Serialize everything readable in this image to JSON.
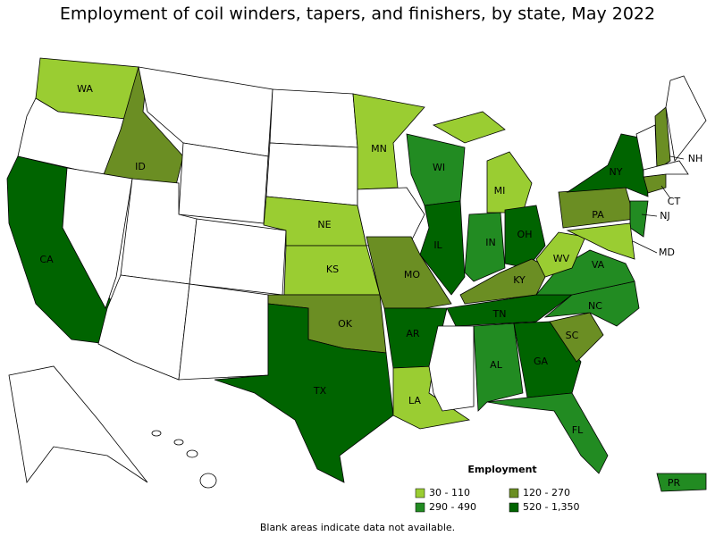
{
  "title": "Employment of coil winders, tapers, and finishers, by state, May 2022",
  "legend": {
    "title": "Employment",
    "entries": [
      {
        "label": "30 - 110",
        "color": "#9acd32"
      },
      {
        "label": "120 - 270",
        "color": "#6b8e23"
      },
      {
        "label": "290 - 490",
        "color": "#228b22"
      },
      {
        "label": "520 - 1,350",
        "color": "#006400"
      }
    ]
  },
  "states": [
    {
      "label": "WA",
      "color": "#9acd32"
    },
    {
      "label": "ID",
      "color": "#6b8e23"
    },
    {
      "label": "CA",
      "color": "#006400"
    },
    {
      "label": "MN",
      "color": "#9acd32"
    },
    {
      "label": "WI",
      "color": "#228b22"
    },
    {
      "label": "MI",
      "color": "#9acd32"
    },
    {
      "label": "NE",
      "color": "#9acd32"
    },
    {
      "label": "KS",
      "color": "#9acd32"
    },
    {
      "label": "IL",
      "color": "#006400"
    },
    {
      "label": "IN",
      "color": "#228b22"
    },
    {
      "label": "OH",
      "color": "#006400"
    },
    {
      "label": "PA",
      "color": "#6b8e23"
    },
    {
      "label": "NY",
      "color": "#006400"
    },
    {
      "label": "NH",
      "color": "#6b8e23"
    },
    {
      "label": "CT",
      "color": "#6b8e23"
    },
    {
      "label": "NJ",
      "color": "#228b22"
    },
    {
      "label": "MD",
      "color": "#9acd32"
    },
    {
      "label": "WV",
      "color": "#9acd32"
    },
    {
      "label": "VA",
      "color": "#228b22"
    },
    {
      "label": "KY",
      "color": "#6b8e23"
    },
    {
      "label": "MO",
      "color": "#6b8e23"
    },
    {
      "label": "OK",
      "color": "#6b8e23"
    },
    {
      "label": "AR",
      "color": "#006400"
    },
    {
      "label": "TN",
      "color": "#006400"
    },
    {
      "label": "NC",
      "color": "#228b22"
    },
    {
      "label": "SC",
      "color": "#6b8e23"
    },
    {
      "label": "AL",
      "color": "#228b22"
    },
    {
      "label": "GA",
      "color": "#006400"
    },
    {
      "label": "LA",
      "color": "#9acd32"
    },
    {
      "label": "TX",
      "color": "#006400"
    },
    {
      "label": "FL",
      "color": "#228b22"
    },
    {
      "label": "PR",
      "color": "#228b22"
    }
  ],
  "note": "Blank areas indicate data not available."
}
